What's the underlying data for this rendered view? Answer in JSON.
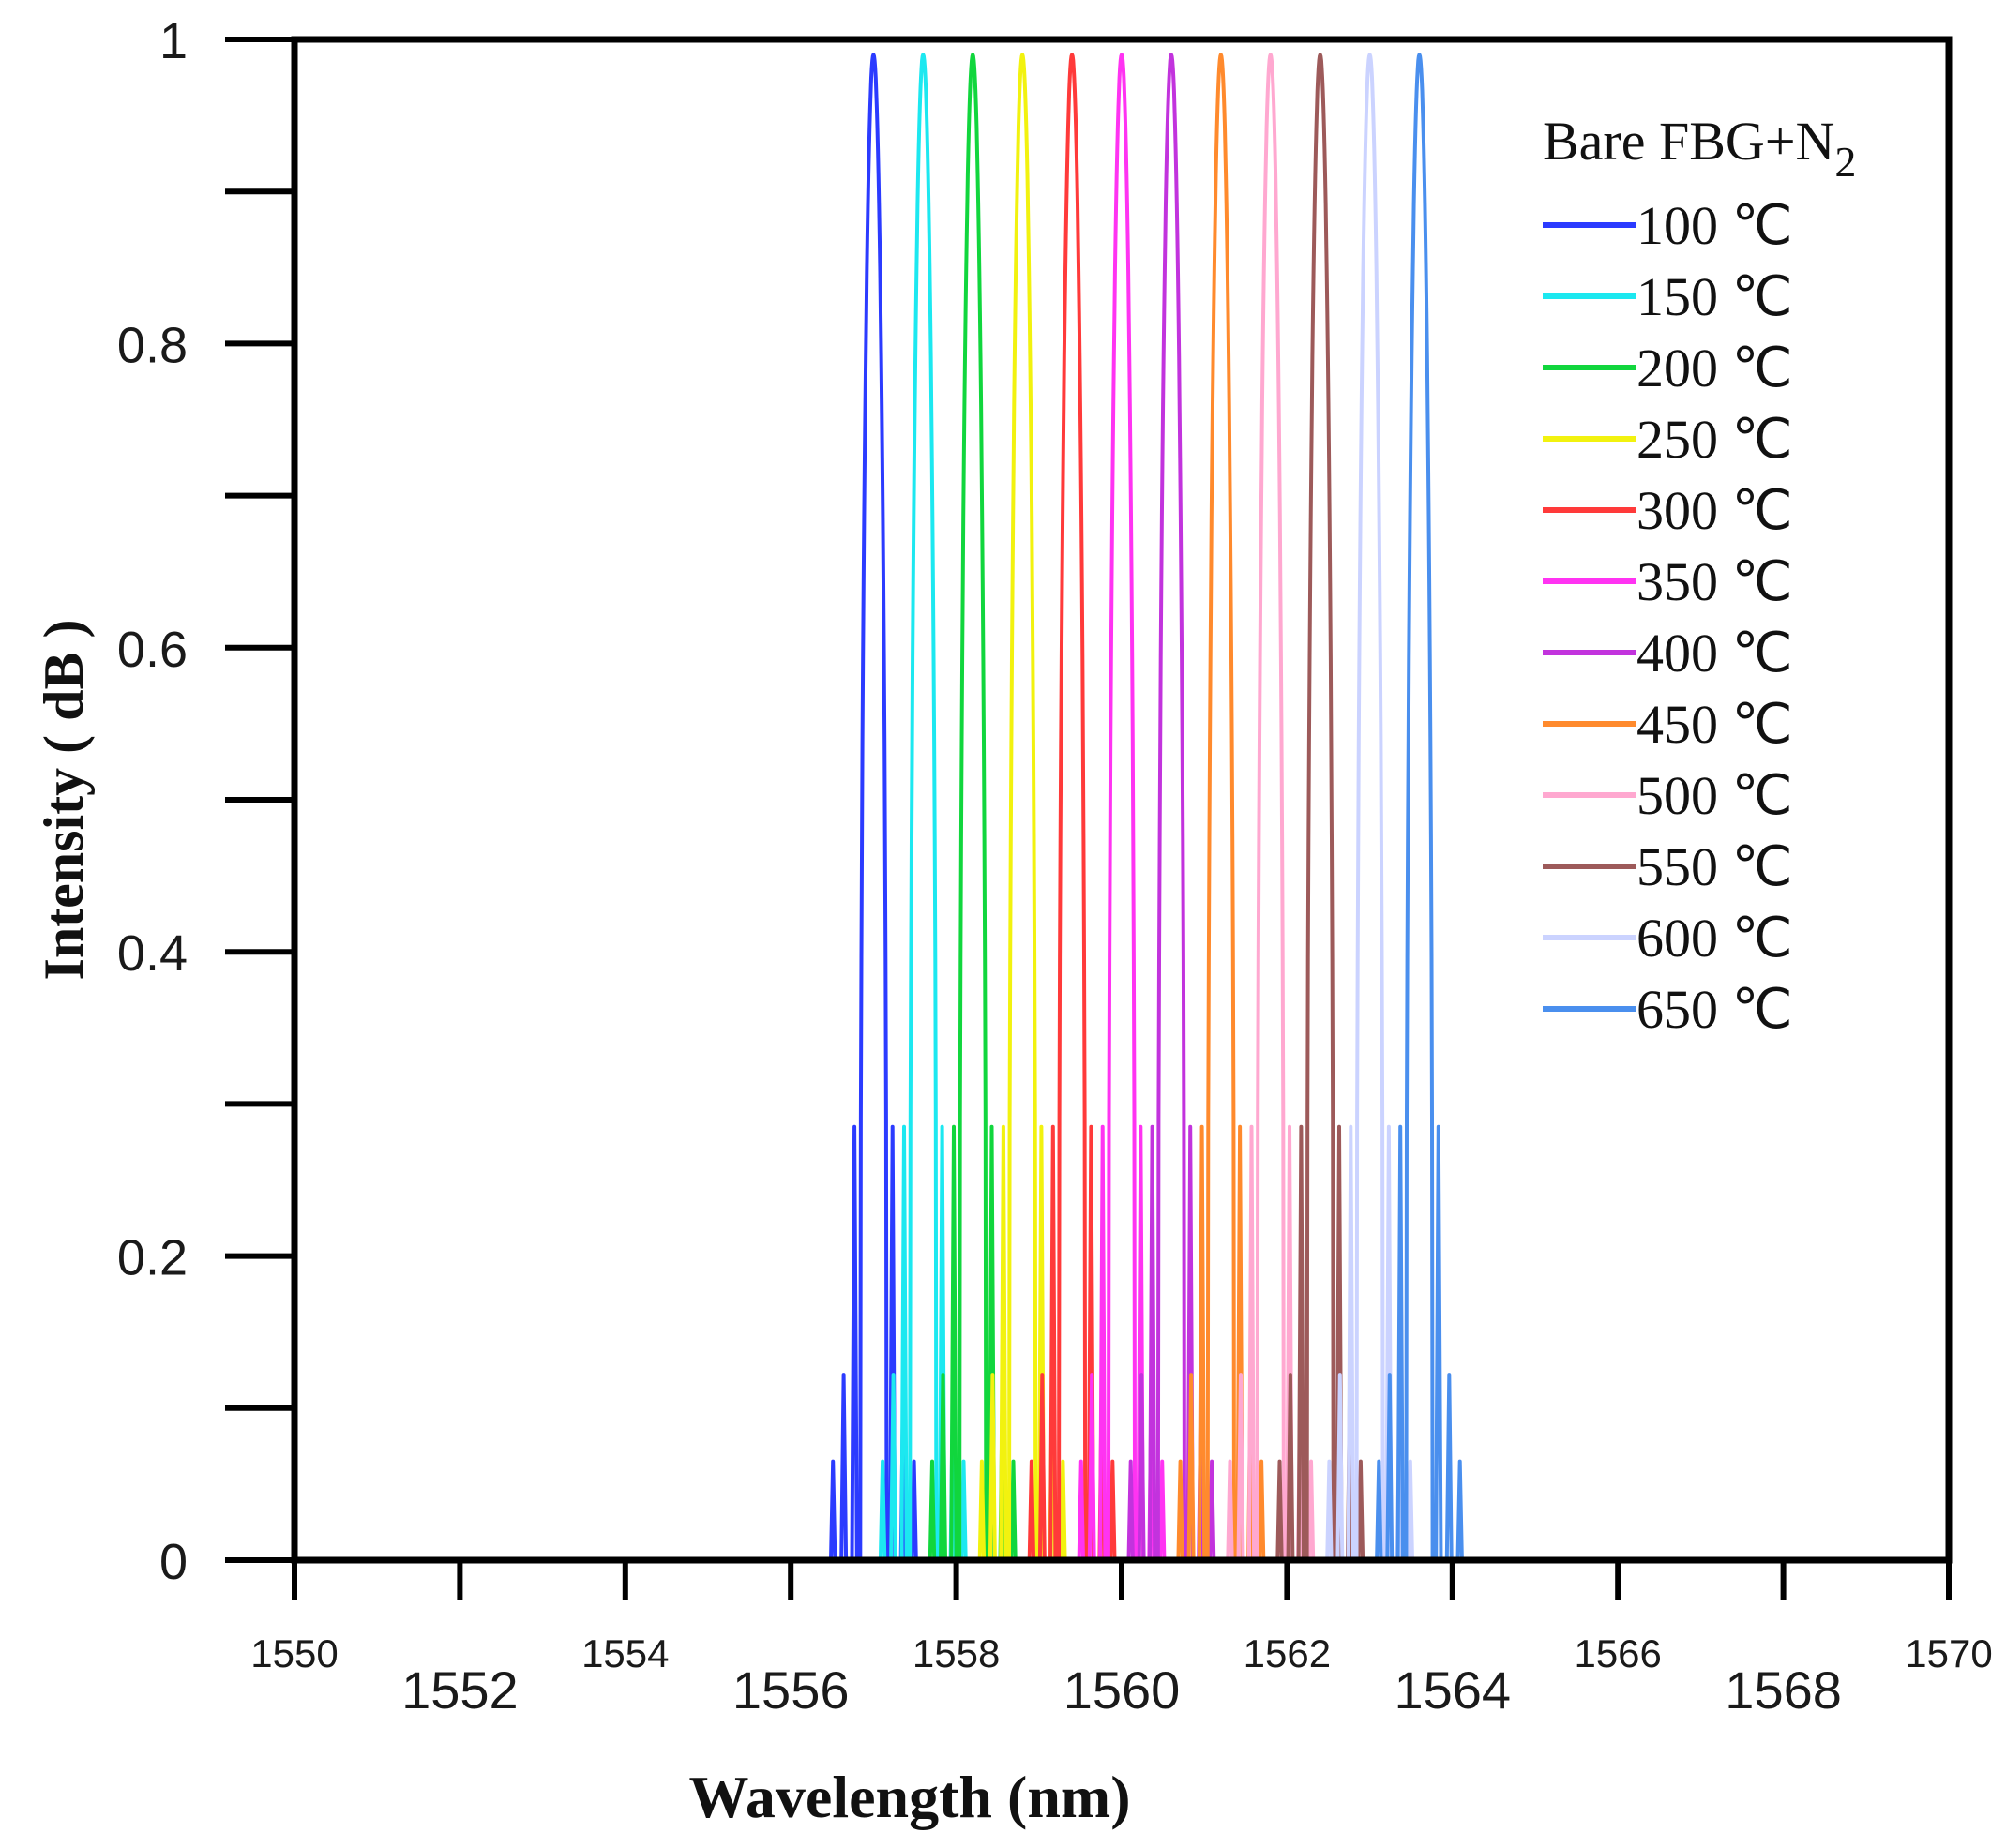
{
  "chart_data": {
    "type": "line",
    "title": "",
    "xlabel": "Wavelength (nm)",
    "ylabel": "Intensity ( dB )",
    "xlim": [
      1550,
      1570
    ],
    "ylim": [
      0,
      1
    ],
    "grid": false,
    "legend_position": "top-right",
    "legend_title": "Bare FBG+N",
    "legend_title_subscript": "2",
    "x_ticks_small": [
      "1550",
      "1554",
      "1558",
      "1562",
      "1566",
      "1570"
    ],
    "x_ticks_large": [
      "1552",
      "1556",
      "1560",
      "1564",
      "1568"
    ],
    "y_ticks": [
      "0",
      "0.2",
      "0.4",
      "0.6",
      "0.8",
      "1"
    ],
    "peak_value": 0.99,
    "series": [
      {
        "name": "100 ℃",
        "color": "#2b3bff",
        "center": 1557.0
      },
      {
        "name": "150 ℃",
        "color": "#1ce8f0",
        "center": 1557.6
      },
      {
        "name": "200 ℃",
        "color": "#11d63d",
        "center": 1558.2
      },
      {
        "name": "250 ℃",
        "color": "#f2f20f",
        "center": 1558.8
      },
      {
        "name": "300 ℃",
        "color": "#ff3a3a",
        "center": 1559.4
      },
      {
        "name": "350 ℃",
        "color": "#ff33f2",
        "center": 1560.0
      },
      {
        "name": "400 ℃",
        "color": "#c233dd",
        "center": 1560.6
      },
      {
        "name": "450 ℃",
        "color": "#ff8a2d",
        "center": 1561.2
      },
      {
        "name": "500 ℃",
        "color": "#ffa8d0",
        "center": 1561.8
      },
      {
        "name": "550 ℃",
        "color": "#9d5a5a",
        "center": 1562.4
      },
      {
        "name": "600 ℃",
        "color": "#cbd3ff",
        "center": 1563.0
      },
      {
        "name": "650 ℃",
        "color": "#4a8fee",
        "center": 1563.6
      }
    ]
  }
}
